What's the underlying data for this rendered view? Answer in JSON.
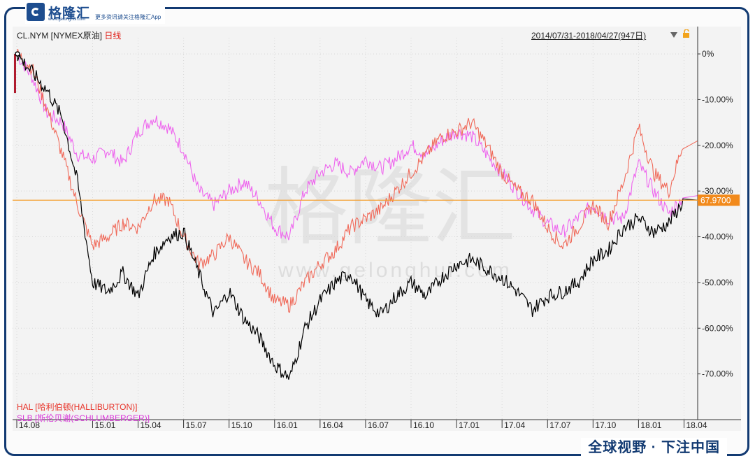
{
  "brand": {
    "logo_text": "格隆汇",
    "tagline": "更多资讯请关注格隆汇App",
    "url": "www.gelonghui.com",
    "watermark_text": "格隆汇",
    "watermark_url": "www.gelonghui.com",
    "footer_slogan": "全球视野 · 下注中国"
  },
  "header": {
    "symbol": "CL.NYM [NYMEX原油]",
    "period": "日线",
    "date_range": "2014/07/31-2018/04/27(947日)"
  },
  "legend": {
    "hal": "HAL [哈利伯顿(HALLIBURTON)]",
    "slb": "SLB [斯伦贝谢(SCHLUMBERGER)]"
  },
  "colors": {
    "cl": "#000000",
    "hal": "#f06a5a",
    "slb": "#ee66ee",
    "price_line": "#f5a030",
    "price_box": "#f28a1c",
    "frame": "#123a72"
  },
  "chart_data": {
    "type": "line",
    "x_ticks": [
      "14.08",
      "15.01",
      "15.04",
      "15.07",
      "15.10",
      "16.01",
      "16.04",
      "16.07",
      "16.10",
      "17.01",
      "17.04",
      "17.07",
      "17.10",
      "18.01",
      "18.04"
    ],
    "y_ticks": [
      "0%",
      "-10.00%",
      "-20.00%",
      "-30.00%",
      "-40.00%",
      "-50.00%",
      "-60.00%",
      "-70.00%"
    ],
    "ylim": [
      -80,
      2
    ],
    "current_price_label": "67.9700",
    "current_price_pct": -32,
    "series": [
      {
        "key": "cl",
        "name": "CL.NYM [NYMEX原油]",
        "points": [
          [
            "14.08",
            0
          ],
          [
            "14.09",
            -4
          ],
          [
            "14.10",
            -8
          ],
          [
            "14.11",
            -14
          ],
          [
            "14.12",
            -28
          ],
          [
            "15.01",
            -50
          ],
          [
            "15.02",
            -52
          ],
          [
            "15.03",
            -48
          ],
          [
            "15.04",
            -53
          ],
          [
            "15.05",
            -44
          ],
          [
            "15.06",
            -40
          ],
          [
            "15.07",
            -39
          ],
          [
            "15.08",
            -48
          ],
          [
            "15.09",
            -57
          ],
          [
            "15.10",
            -52
          ],
          [
            "15.11",
            -58
          ],
          [
            "15.12",
            -62
          ],
          [
            "16.01",
            -68
          ],
          [
            "16.02",
            -71
          ],
          [
            "16.03",
            -60
          ],
          [
            "16.04",
            -54
          ],
          [
            "16.05",
            -50
          ],
          [
            "16.06",
            -48
          ],
          [
            "16.07",
            -54
          ],
          [
            "16.08",
            -57
          ],
          [
            "16.09",
            -53
          ],
          [
            "16.10",
            -50
          ],
          [
            "16.11",
            -53
          ],
          [
            "16.12",
            -49
          ],
          [
            "17.01",
            -46
          ],
          [
            "17.02",
            -45
          ],
          [
            "17.03",
            -47
          ],
          [
            "17.04",
            -49
          ],
          [
            "17.05",
            -52
          ],
          [
            "17.06",
            -56
          ],
          [
            "17.07",
            -53
          ],
          [
            "17.08",
            -52
          ],
          [
            "17.09",
            -50
          ],
          [
            "17.10",
            -45
          ],
          [
            "17.11",
            -43
          ],
          [
            "17.12",
            -38
          ],
          [
            "18.01",
            -36
          ],
          [
            "18.02",
            -39
          ],
          [
            "18.03",
            -37
          ],
          [
            "18.04",
            -32
          ]
        ]
      },
      {
        "key": "hal",
        "name": "HAL [哈利伯顿(HALLIBURTON)]",
        "points": [
          [
            "14.08",
            0
          ],
          [
            "14.09",
            -3
          ],
          [
            "14.10",
            -12
          ],
          [
            "14.11",
            -22
          ],
          [
            "14.12",
            -33
          ],
          [
            "15.01",
            -42
          ],
          [
            "15.02",
            -40
          ],
          [
            "15.03",
            -37
          ],
          [
            "15.04",
            -38
          ],
          [
            "15.05",
            -32
          ],
          [
            "15.06",
            -32
          ],
          [
            "15.07",
            -40
          ],
          [
            "15.08",
            -46
          ],
          [
            "15.09",
            -44
          ],
          [
            "15.10",
            -40
          ],
          [
            "15.11",
            -45
          ],
          [
            "15.12",
            -48
          ],
          [
            "16.01",
            -54
          ],
          [
            "16.02",
            -55
          ],
          [
            "16.03",
            -50
          ],
          [
            "16.04",
            -46
          ],
          [
            "16.05",
            -43
          ],
          [
            "16.06",
            -38
          ],
          [
            "16.07",
            -36
          ],
          [
            "16.08",
            -34
          ],
          [
            "16.09",
            -30
          ],
          [
            "16.10",
            -26
          ],
          [
            "16.11",
            -22
          ],
          [
            "16.12",
            -18
          ],
          [
            "17.01",
            -17
          ],
          [
            "17.02",
            -15
          ],
          [
            "17.03",
            -20
          ],
          [
            "17.04",
            -26
          ],
          [
            "17.05",
            -30
          ],
          [
            "17.06",
            -32
          ],
          [
            "17.07",
            -38
          ],
          [
            "17.08",
            -42
          ],
          [
            "17.09",
            -38
          ],
          [
            "17.10",
            -33
          ],
          [
            "17.11",
            -37
          ],
          [
            "17.12",
            -28
          ],
          [
            "18.01",
            -16
          ],
          [
            "18.02",
            -26
          ],
          [
            "18.03",
            -30
          ],
          [
            "18.04",
            -19
          ]
        ]
      },
      {
        "key": "slb",
        "name": "SLB [斯伦贝谢(SCHLUMBERGER)]",
        "points": [
          [
            "14.08",
            0
          ],
          [
            "14.09",
            -5
          ],
          [
            "14.10",
            -13
          ],
          [
            "14.11",
            -15
          ],
          [
            "14.12",
            -22
          ],
          [
            "15.01",
            -23
          ],
          [
            "15.02",
            -21
          ],
          [
            "15.03",
            -24
          ],
          [
            "15.04",
            -17
          ],
          [
            "15.05",
            -14
          ],
          [
            "15.06",
            -16
          ],
          [
            "15.07",
            -21
          ],
          [
            "15.08",
            -30
          ],
          [
            "15.09",
            -33
          ],
          [
            "15.10",
            -30
          ],
          [
            "15.11",
            -28
          ],
          [
            "15.12",
            -32
          ],
          [
            "16.01",
            -38
          ],
          [
            "16.02",
            -40
          ],
          [
            "16.03",
            -30
          ],
          [
            "16.04",
            -26
          ],
          [
            "16.05",
            -24
          ],
          [
            "16.06",
            -26
          ],
          [
            "16.07",
            -23
          ],
          [
            "16.08",
            -25
          ],
          [
            "16.09",
            -23
          ],
          [
            "16.10",
            -20
          ],
          [
            "16.11",
            -22
          ],
          [
            "16.12",
            -19
          ],
          [
            "17.01",
            -17
          ],
          [
            "17.02",
            -18
          ],
          [
            "17.03",
            -22
          ],
          [
            "17.04",
            -26
          ],
          [
            "17.05",
            -30
          ],
          [
            "17.06",
            -34
          ],
          [
            "17.07",
            -37
          ],
          [
            "17.08",
            -39
          ],
          [
            "17.09",
            -36
          ],
          [
            "17.10",
            -33
          ],
          [
            "17.11",
            -36
          ],
          [
            "17.12",
            -36
          ],
          [
            "18.01",
            -24
          ],
          [
            "18.02",
            -30
          ],
          [
            "18.03",
            -35
          ],
          [
            "18.04",
            -31
          ]
        ]
      }
    ]
  }
}
